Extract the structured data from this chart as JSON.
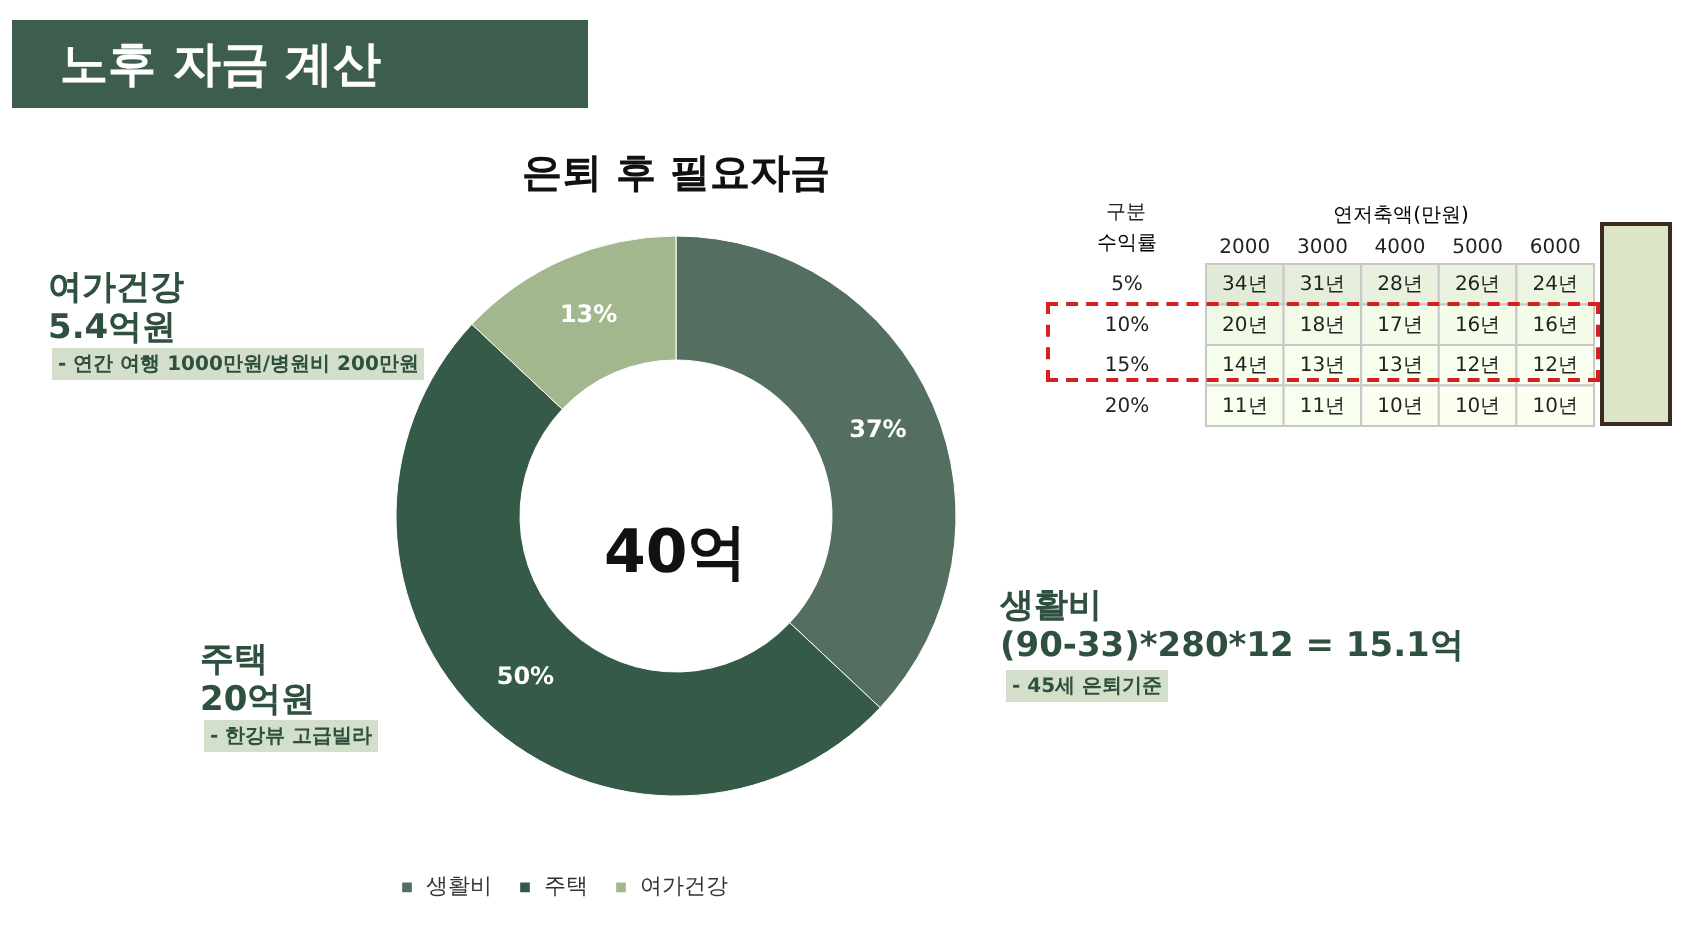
{
  "chart_data": [
    {
      "type": "donut",
      "title": "은퇴 후 필요자금",
      "categories": [
        "생활비",
        "주택",
        "여가건강"
      ],
      "values": [
        37,
        50,
        13
      ],
      "colors": [
        "#546e5f",
        "#355a48",
        "#a3b78e"
      ],
      "value_labels": [
        "37%",
        "50%",
        "13%"
      ],
      "legend": "bottom",
      "annotations": [
        "노후 자금 계산",
        "40억",
        "여가건강",
        "5.4억원",
        "- 연간 여행 1000만원/병원비 200만원",
        "주택",
        "20억원",
        "- 한강뷰 고급빌라",
        "생활비",
        "(90-33)*280*12 = 15.1억",
        "- 45세 은퇴기준"
      ]
    },
    {
      "type": "heatmap",
      "title": "구분",
      "xlabel": "연저축액(만원)",
      "ylabel": "수익률",
      "categories": [
        "2000",
        "3000",
        "4000",
        "5000",
        "6000"
      ],
      "y_categories": [
        "5%",
        "10%",
        "15%",
        "20%"
      ],
      "cells": [
        [
          34,
          31,
          28,
          26,
          24
        ],
        [
          20,
          18,
          17,
          16,
          16
        ],
        [
          14,
          13,
          13,
          12,
          12
        ],
        [
          11,
          11,
          10,
          10,
          10
        ]
      ],
      "cell_labels": [
        [
          "34년",
          "31년",
          "28년",
          "26년",
          "24년"
        ],
        [
          "20년",
          "18년",
          "17년",
          "16년",
          "16년"
        ],
        [
          "14년",
          "13년",
          "13년",
          "12년",
          "12년"
        ],
        [
          "11년",
          "11년",
          "10년",
          "10년",
          "10년"
        ]
      ]
    }
  ]
}
